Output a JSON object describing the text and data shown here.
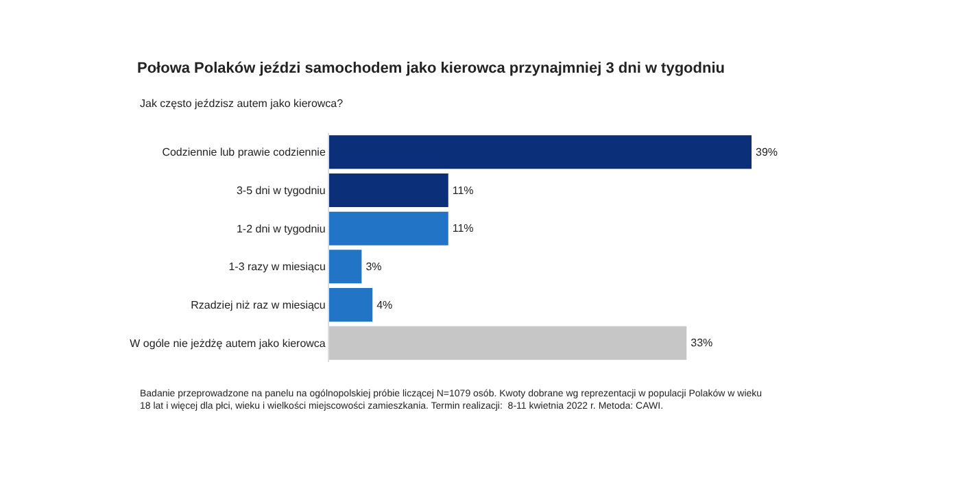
{
  "chart_data": {
    "type": "bar",
    "orientation": "horizontal",
    "title": "Połowa Polaków jeździ samochodem jako kierowca przynajmniej 3 dni w tygodniu",
    "subtitle": "Jak często jeździsz autem jako kierowca?",
    "categories": [
      "Codziennie lub prawie codziennie",
      "3-5 dni w tygodniu",
      "1-2 dni w tygodniu",
      "1-3 razy w miesiącu",
      "Rzadziej niż raz w miesiącu",
      "W ogóle nie jeżdżę autem jako kierowca"
    ],
    "values": [
      39,
      11,
      11,
      3,
      4,
      33
    ],
    "colors": [
      "#0b2f78",
      "#0b2f78",
      "#2174c6",
      "#2174c6",
      "#2174c6",
      "#c6c6c6"
    ],
    "value_labels": [
      "39%",
      "11%",
      "11%",
      "3%",
      "4%",
      "33%"
    ],
    "annotations": [
      "Badanie przeprowadzone na panelu na ogólnopolskiej próbie liczącej N=1079 osób. Kwoty dobrane wg reprezentacji w populacji Polaków w wieku 18 lat i więcej dla płci, wieku i wielkości miejscowości zamieszkania. Termin realizacji:  8-11 kwietnia 2022 r. Metoda: CAWI."
    ]
  }
}
